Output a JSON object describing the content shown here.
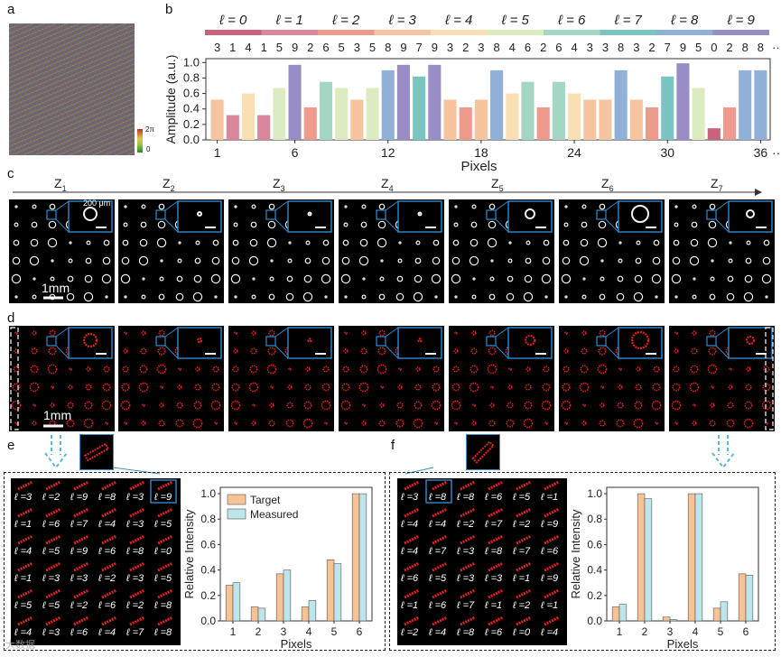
{
  "panel_labels": {
    "a": "a",
    "b": "b",
    "c": "c",
    "d": "d",
    "e": "e",
    "f": "f"
  },
  "phase_colorbar": {
    "top": "2π",
    "bottom": "0"
  },
  "ell_bar": {
    "labels": [
      "ℓ = 0",
      "ℓ = 1",
      "ℓ = 2",
      "ℓ = 3",
      "ℓ = 4",
      "ℓ = 5",
      "ℓ = 6",
      "ℓ = 7",
      "ℓ = 8",
      "ℓ = 9"
    ],
    "colors": [
      "#c9627d",
      "#d9879a",
      "#ee9a8d",
      "#f6c49e",
      "#f9e0b4",
      "#ddecc0",
      "#a4d6c4",
      "#7cc4c2",
      "#90b0d8",
      "#9a8cc6"
    ]
  },
  "chart_data": [
    {
      "type": "bar",
      "title": "",
      "xlabel": "Pixels",
      "ylabel": "Amplitude (a.u.)",
      "ylim": [
        0,
        1.05
      ],
      "yticks": [
        "0.0",
        "0.2",
        "0.4",
        "0.6",
        "0.8",
        "1.0"
      ],
      "xticks": [
        "1",
        "6",
        "12",
        "18",
        "24",
        "30",
        "36"
      ],
      "x_ellipsis": "···",
      "top_ellipsis": "···",
      "ell_values": [
        3,
        1,
        4,
        1,
        5,
        9,
        2,
        6,
        5,
        3,
        5,
        8,
        9,
        7,
        9,
        3,
        2,
        3,
        8,
        4,
        6,
        2,
        6,
        4,
        3,
        3,
        8,
        3,
        2,
        7,
        9,
        5,
        0,
        2,
        8,
        8
      ],
      "values": [
        0.52,
        0.32,
        0.6,
        0.32,
        0.67,
        0.97,
        0.42,
        0.75,
        0.67,
        0.52,
        0.67,
        0.9,
        0.97,
        0.82,
        0.97,
        0.52,
        0.42,
        0.52,
        0.9,
        0.6,
        0.75,
        0.42,
        0.75,
        0.6,
        0.52,
        0.52,
        0.9,
        0.52,
        0.42,
        0.82,
        0.99,
        0.67,
        0.15,
        0.42,
        0.9,
        0.9
      ]
    },
    {
      "type": "bar",
      "xlabel": "Pixels",
      "ylabel": "Relative Intensity",
      "ylim": [
        0,
        1.05
      ],
      "yticks": [
        "0.0",
        "0.2",
        "0.4",
        "0.6",
        "0.8",
        "1.0"
      ],
      "categories": [
        "1",
        "2",
        "3",
        "4",
        "5",
        "6"
      ],
      "series": [
        {
          "name": "Target",
          "color": "#f8c394",
          "values": [
            0.28,
            0.11,
            0.37,
            0.11,
            0.48,
            1.0
          ]
        },
        {
          "name": "Measured",
          "color": "#bde6ec",
          "values": [
            0.3,
            0.1,
            0.4,
            0.16,
            0.45,
            1.0
          ]
        }
      ]
    },
    {
      "type": "bar",
      "xlabel": "Pixels",
      "ylabel": "Relative Intensity",
      "ylim": [
        0,
        1.05
      ],
      "yticks": [
        "0.0",
        "0.2",
        "0.4",
        "0.6",
        "0.8",
        "1.0"
      ],
      "categories": [
        "1",
        "2",
        "3",
        "4",
        "5",
        "6"
      ],
      "series": [
        {
          "name": "Target",
          "color": "#f8c394",
          "values": [
            0.11,
            1.0,
            0.03,
            1.0,
            0.1,
            0.37
          ]
        },
        {
          "name": "Measured",
          "color": "#bde6ec",
          "values": [
            0.13,
            0.96,
            0.01,
            1.0,
            0.15,
            0.36
          ]
        }
      ]
    }
  ],
  "z_labels": [
    "Z",
    "Z",
    "Z",
    "Z",
    "Z",
    "Z",
    "Z"
  ],
  "z_subs": [
    "1",
    "2",
    "3",
    "4",
    "5",
    "6",
    "7"
  ],
  "scalebar_c": "1mm",
  "scalebar_inset": "200 μm",
  "scalebar_d": "1mm",
  "e_grid": [
    [
      "3",
      "2",
      "9",
      "8",
      "3",
      "9"
    ],
    [
      "1",
      "6",
      "7",
      "4",
      "3",
      "5"
    ],
    [
      "4",
      "5",
      "9",
      "6",
      "8",
      "0"
    ],
    [
      "1",
      "3",
      "3",
      "2",
      "3",
      "5"
    ],
    [
      "5",
      "5",
      "2",
      "6",
      "2",
      "8"
    ],
    [
      "4",
      "3",
      "6",
      "4",
      "7",
      "8"
    ]
  ],
  "f_grid": [
    [
      "3",
      "8",
      "8",
      "6",
      "5",
      "1"
    ],
    [
      "4",
      "4",
      "2",
      "7",
      "2",
      "9"
    ],
    [
      "4",
      "7",
      "3",
      "8",
      "7",
      "6"
    ],
    [
      "6",
      "5",
      "3",
      "3",
      "1",
      "9"
    ],
    [
      "1",
      "6",
      "7",
      "1",
      "2",
      "1"
    ],
    [
      "2",
      "4",
      "8",
      "6",
      "0",
      "4"
    ]
  ],
  "ell_prefix": "ℓ =",
  "legend": {
    "target": "Target",
    "measured": "Measured"
  },
  "watermark": "大数据"
}
